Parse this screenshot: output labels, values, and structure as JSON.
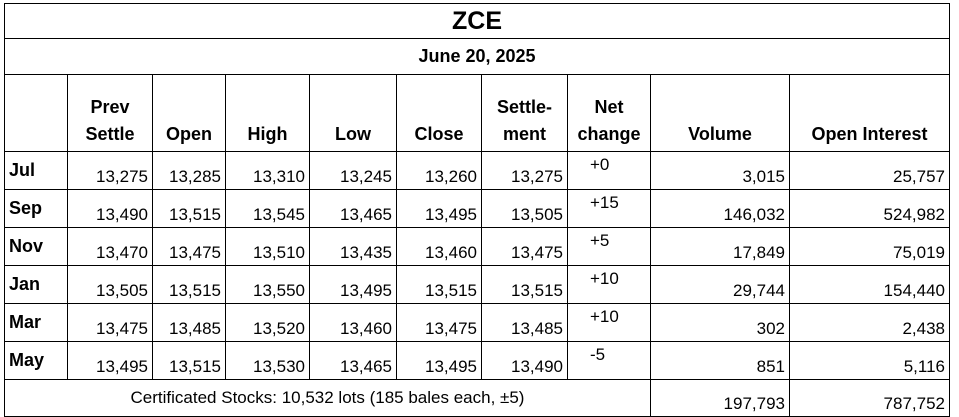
{
  "title": "ZCE",
  "date": "June 20, 2025",
  "headers": {
    "month": "",
    "prev_settle_1": "Prev",
    "prev_settle_2": "Settle",
    "open": "Open",
    "high": "High",
    "low": "Low",
    "close": "Close",
    "settlement_1": "Settle-",
    "settlement_2": "ment",
    "net_change_1": "Net",
    "net_change_2": "change",
    "volume": "Volume",
    "open_interest": "Open Interest"
  },
  "rows": [
    {
      "month": "Jul",
      "prev_settle": "13,275",
      "open": "13,285",
      "high": "13,310",
      "low": "13,245",
      "close": "13,260",
      "settlement": "13,275",
      "net_change": "+0",
      "volume": "3,015",
      "open_interest": "25,757"
    },
    {
      "month": "Sep",
      "prev_settle": "13,490",
      "open": "13,515",
      "high": "13,545",
      "low": "13,465",
      "close": "13,495",
      "settlement": "13,505",
      "net_change": "+15",
      "volume": "146,032",
      "open_interest": "524,982"
    },
    {
      "month": "Nov",
      "prev_settle": "13,470",
      "open": "13,475",
      "high": "13,510",
      "low": "13,435",
      "close": "13,460",
      "settlement": "13,475",
      "net_change": "+5",
      "volume": "17,849",
      "open_interest": "75,019"
    },
    {
      "month": "Jan",
      "prev_settle": "13,505",
      "open": "13,515",
      "high": "13,550",
      "low": "13,495",
      "close": "13,515",
      "settlement": "13,515",
      "net_change": "+10",
      "volume": "29,744",
      "open_interest": "154,440"
    },
    {
      "month": "Mar",
      "prev_settle": "13,475",
      "open": "13,485",
      "high": "13,520",
      "low": "13,460",
      "close": "13,475",
      "settlement": "13,485",
      "net_change": "+10",
      "volume": "302",
      "open_interest": "2,438"
    },
    {
      "month": "May",
      "prev_settle": "13,495",
      "open": "13,515",
      "high": "13,530",
      "low": "13,465",
      "close": "13,495",
      "settlement": "13,490",
      "net_change": "-5",
      "volume": "851",
      "open_interest": "5,116"
    }
  ],
  "footer": {
    "note": "Certificated Stocks: 10,532   lots (185 bales each, ±5)",
    "total_volume": "197,793",
    "total_open_interest": "787,752"
  }
}
